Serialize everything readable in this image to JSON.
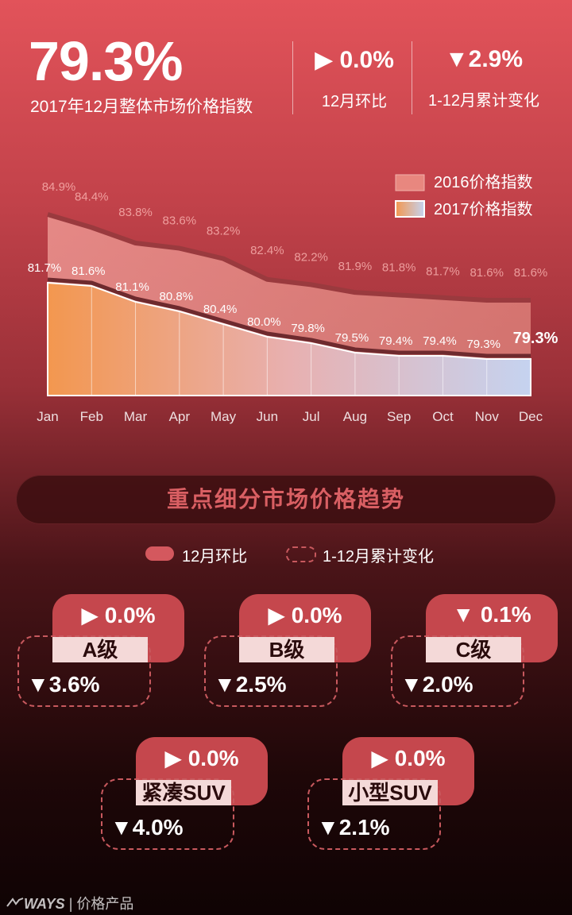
{
  "header": {
    "main_value": "79.3%",
    "main_label": "2017年12月整体市场价格指数",
    "kpi1_value": "▶ 0.0%",
    "kpi1_label": "12月环比",
    "kpi2_value": "▼2.9%",
    "kpi2_label": "1-12月累计变化"
  },
  "chart_data": {
    "type": "area",
    "categories": [
      "Jan",
      "Feb",
      "Mar",
      "Apr",
      "May",
      "Jun",
      "Jul",
      "Aug",
      "Sep",
      "Oct",
      "Nov",
      "Dec"
    ],
    "series": [
      {
        "name": "2016价格指数",
        "values": [
          84.9,
          84.4,
          83.8,
          83.6,
          83.2,
          82.4,
          82.2,
          81.9,
          81.8,
          81.7,
          81.6,
          81.6
        ],
        "color": "#e8877f"
      },
      {
        "name": "2017价格指数",
        "values": [
          81.7,
          81.6,
          81.1,
          80.8,
          80.4,
          80.0,
          79.8,
          79.5,
          79.4,
          79.4,
          79.3,
          79.3
        ],
        "color_start": "#f3974f",
        "color_end": "#c5d3f0"
      }
    ],
    "labels_2016": [
      "84.9%",
      "84.4%",
      "83.8%",
      "83.6%",
      "83.2%",
      "82.4%",
      "82.2%",
      "81.9%",
      "81.8%",
      "81.7%",
      "81.6%",
      "81.6%"
    ],
    "labels_2017": [
      "81.7%",
      "81.6%",
      "81.1%",
      "80.8%",
      "80.4%",
      "80.0%",
      "79.8%",
      "79.5%",
      "79.4%",
      "79.4%",
      "79.3%",
      "79.3%"
    ],
    "legend_position": "top-right",
    "grid": false
  },
  "segment": {
    "title": "重点细分市场价格趋势",
    "legend_solid": "12月环比",
    "legend_dashed": "1-12月累计变化",
    "cards": [
      {
        "name": "A级",
        "mom": "▶ 0.0%",
        "ytd": "▼3.6%"
      },
      {
        "name": "B级",
        "mom": "▶ 0.0%",
        "ytd": "▼2.5%"
      },
      {
        "name": "C级",
        "mom": "▼ 0.1%",
        "ytd": "▼2.0%"
      },
      {
        "name": "紧凑SUV",
        "mom": "▶ 0.0%",
        "ytd": "▼4.0%"
      },
      {
        "name": "小型SUV",
        "mom": "▶ 0.0%",
        "ytd": "▼2.1%"
      }
    ]
  },
  "footer": {
    "brand": "WAYS",
    "text": "| 价格产品"
  }
}
